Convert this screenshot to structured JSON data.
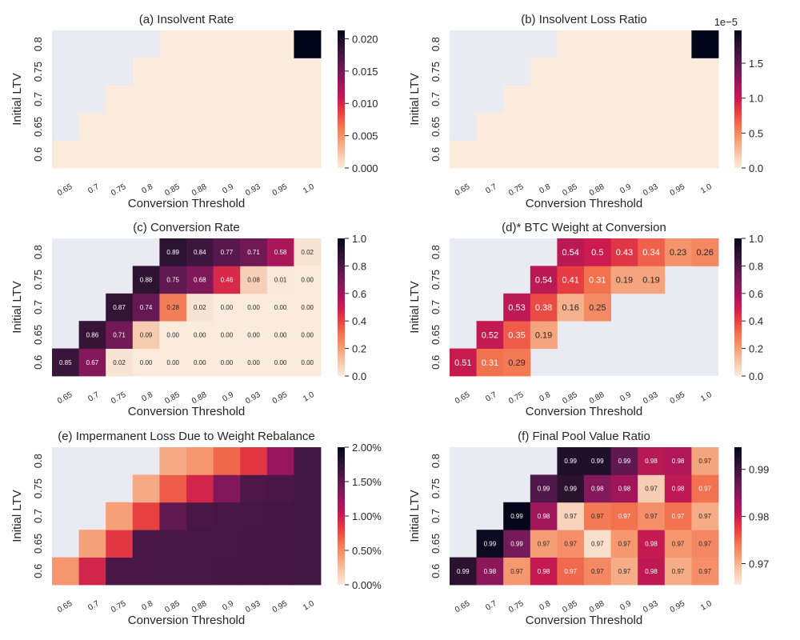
{
  "chart_data": [
    {
      "id": "a",
      "type": "heatmap",
      "title": "(a) Insolvent Rate",
      "xlabel": "Conversion Threshold",
      "ylabel": "Initial LTV",
      "x_categories": [
        "0.65",
        "0.7",
        "0.75",
        "0.8",
        "0.85",
        "0.88",
        "0.9",
        "0.93",
        "0.95",
        "1.0"
      ],
      "y_categories": [
        "0.6",
        "0.65",
        "0.7",
        "0.75",
        "0.8"
      ],
      "values": [
        [
          0,
          0,
          0,
          0,
          0,
          0,
          0,
          0,
          0,
          0
        ],
        [
          null,
          0,
          0,
          0,
          0,
          0,
          0,
          0,
          0,
          0
        ],
        [
          null,
          null,
          0,
          0,
          0,
          0,
          0,
          0,
          0,
          0
        ],
        [
          null,
          null,
          null,
          0,
          0,
          0,
          0,
          0,
          0,
          0
        ],
        [
          null,
          null,
          null,
          null,
          0,
          0,
          0,
          0,
          0,
          0.0213
        ]
      ],
      "annotated": false,
      "colormap": "rocket_r",
      "vmin": 0,
      "vmax": 0.0213,
      "colorbar_ticks": [
        0,
        0.005,
        0.01,
        0.015,
        0.02
      ],
      "colorbar_tick_labels": [
        "0.000",
        "0.005",
        "0.010",
        "0.015",
        "0.020"
      ],
      "colorbar_offset_label": ""
    },
    {
      "id": "b",
      "type": "heatmap",
      "title": "(b) Insolvent Loss Ratio",
      "xlabel": "Conversion Threshold",
      "ylabel": "Initial LTV",
      "x_categories": [
        "0.65",
        "0.7",
        "0.75",
        "0.8",
        "0.85",
        "0.88",
        "0.9",
        "0.93",
        "0.95",
        "1.0"
      ],
      "y_categories": [
        "0.6",
        "0.65",
        "0.7",
        "0.75",
        "0.8"
      ],
      "values": [
        [
          0,
          0,
          0,
          0,
          0,
          0,
          0,
          0,
          0,
          0
        ],
        [
          null,
          0,
          0,
          0,
          0,
          0,
          0,
          0,
          0,
          0
        ],
        [
          null,
          null,
          0,
          0,
          0,
          0,
          0,
          0,
          0,
          0
        ],
        [
          null,
          null,
          null,
          0,
          0,
          0,
          0,
          0,
          0,
          0
        ],
        [
          null,
          null,
          null,
          null,
          0,
          0,
          0,
          0,
          0,
          1.97e-05
        ]
      ],
      "annotated": false,
      "colormap": "rocket_r",
      "vmin": 0,
      "vmax": 1.97e-05,
      "colorbar_ticks": [
        0,
        5e-06,
        1e-05,
        1.5e-05
      ],
      "colorbar_tick_labels": [
        "0.0",
        "0.5",
        "1.0",
        "1.5"
      ],
      "colorbar_offset_label": "1e−5"
    },
    {
      "id": "c",
      "type": "heatmap",
      "title": "(c) Conversion Rate",
      "xlabel": "Conversion Threshold",
      "ylabel": "Initial LTV",
      "x_categories": [
        "0.65",
        "0.7",
        "0.75",
        "0.8",
        "0.85",
        "0.88",
        "0.9",
        "0.93",
        "0.95",
        "1.0"
      ],
      "y_categories": [
        "0.6",
        "0.65",
        "0.7",
        "0.75",
        "0.8"
      ],
      "values": [
        [
          0.85,
          0.67,
          0.02,
          0.0,
          0.0,
          0.0,
          0.0,
          0.0,
          0.0,
          0.0
        ],
        [
          null,
          0.86,
          0.71,
          0.09,
          0.0,
          0.0,
          0.0,
          0.0,
          0.0,
          0.0
        ],
        [
          null,
          null,
          0.87,
          0.74,
          0.28,
          0.02,
          0.0,
          0.0,
          0.0,
          0.0
        ],
        [
          null,
          null,
          null,
          0.88,
          0.75,
          0.68,
          0.46,
          0.08,
          0.01,
          0.0
        ],
        [
          null,
          null,
          null,
          null,
          0.89,
          0.84,
          0.77,
          0.71,
          0.58,
          0.02
        ]
      ],
      "annotated": true,
      "annot_format": "2f",
      "colormap": "rocket_r",
      "vmin": 0,
      "vmax": 1,
      "colorbar_ticks": [
        0,
        0.2,
        0.4,
        0.6,
        0.8,
        1.0
      ],
      "colorbar_tick_labels": [
        "0.0",
        "0.2",
        "0.4",
        "0.6",
        "0.8",
        "1.0"
      ],
      "colorbar_offset_label": ""
    },
    {
      "id": "d",
      "type": "heatmap",
      "title": "(d)* BTC Weight at Conversion",
      "xlabel": "Conversion Threshold",
      "ylabel": "Initial LTV",
      "x_categories": [
        "0.65",
        "0.7",
        "0.75",
        "0.8",
        "0.85",
        "0.88",
        "0.9",
        "0.93",
        "0.95",
        "1.0"
      ],
      "y_categories": [
        "0.6",
        "0.65",
        "0.7",
        "0.75",
        "0.8"
      ],
      "values": [
        [
          0.51,
          0.31,
          0.29,
          null,
          null,
          null,
          null,
          null,
          null,
          null
        ],
        [
          null,
          0.52,
          0.35,
          0.19,
          null,
          null,
          null,
          null,
          null,
          null
        ],
        [
          null,
          null,
          0.53,
          0.38,
          0.16,
          0.25,
          null,
          null,
          null,
          null
        ],
        [
          null,
          null,
          null,
          0.54,
          0.41,
          0.31,
          0.19,
          0.19,
          null,
          null
        ],
        [
          null,
          null,
          null,
          null,
          0.54,
          0.5,
          0.43,
          0.34,
          0.23,
          0.26
        ]
      ],
      "annotated": true,
      "annot_format": "g",
      "colormap": "rocket_r",
      "vmin": 0,
      "vmax": 1,
      "colorbar_ticks": [
        0,
        0.2,
        0.4,
        0.6,
        0.8,
        1.0
      ],
      "colorbar_tick_labels": [
        "0.0",
        "0.2",
        "0.4",
        "0.6",
        "0.8",
        "1.0"
      ],
      "colorbar_offset_label": ""
    },
    {
      "id": "e",
      "type": "heatmap",
      "title": "(e) Impermanent Loss Due to Weight Rebalance",
      "xlabel": "Conversion Threshold",
      "ylabel": "Initial LTV",
      "x_categories": [
        "0.65",
        "0.7",
        "0.75",
        "0.8",
        "0.85",
        "0.88",
        "0.9",
        "0.93",
        "0.95",
        "1.0"
      ],
      "y_categories": [
        "0.6",
        "0.65",
        "0.7",
        "0.75",
        "0.8"
      ],
      "values": [
        [
          0.0045,
          0.0095,
          0.0162,
          0.0162,
          0.0163,
          0.0163,
          0.0164,
          0.0164,
          0.0164,
          0.0165
        ],
        [
          null,
          0.004,
          0.0085,
          0.0162,
          0.0163,
          0.0163,
          0.0163,
          0.0164,
          0.0164,
          0.0165
        ],
        [
          null,
          null,
          0.004,
          0.008,
          0.015,
          0.0162,
          0.0163,
          0.0163,
          0.0164,
          0.0165
        ],
        [
          null,
          null,
          null,
          0.0035,
          0.007,
          0.0095,
          0.0135,
          0.016,
          0.0162,
          0.0165
        ],
        [
          null,
          null,
          null,
          null,
          0.0035,
          0.0045,
          0.0065,
          0.0085,
          0.0125,
          0.0165
        ]
      ],
      "annotated": false,
      "colormap": "rocket_r",
      "vmin": 0,
      "vmax": 0.02,
      "colorbar_ticks": [
        0,
        0.005,
        0.01,
        0.015,
        0.02
      ],
      "colorbar_tick_labels": [
        "0.00%",
        "0.50%",
        "1.00%",
        "1.50%",
        "2.00%"
      ],
      "colorbar_offset_label": ""
    },
    {
      "id": "f",
      "type": "heatmap",
      "title": "(f) Final Pool Value Ratio",
      "xlabel": "Conversion Threshold",
      "ylabel": "Initial LTV",
      "x_categories": [
        "0.65",
        "0.7",
        "0.75",
        "0.8",
        "0.85",
        "0.88",
        "0.9",
        "0.93",
        "0.95",
        "1.0"
      ],
      "y_categories": [
        "0.6",
        "0.65",
        "0.7",
        "0.75",
        "0.8"
      ],
      "values": [
        [
          0.9915,
          0.9845,
          0.972,
          0.9805,
          0.975,
          0.973,
          0.9705,
          0.981,
          0.9705,
          0.9725
        ],
        [
          null,
          0.994,
          0.986,
          0.9715,
          0.9725,
          0.9665,
          0.972,
          0.9805,
          0.972,
          0.973
        ],
        [
          null,
          null,
          0.9945,
          0.983,
          0.9675,
          0.974,
          0.9745,
          0.9725,
          0.9745,
          0.9705
        ],
        [
          null,
          null,
          null,
          0.9885,
          0.9915,
          0.985,
          0.983,
          0.968,
          0.981,
          0.9745
        ],
        [
          null,
          null,
          null,
          null,
          0.9925,
          0.9925,
          0.9875,
          0.9815,
          0.982,
          0.971
        ]
      ],
      "annotated": true,
      "annot_format": "2f",
      "colormap": "rocket_r",
      "vmin": 0.9655,
      "vmax": 0.9947,
      "colorbar_ticks": [
        0.97,
        0.98,
        0.99
      ],
      "colorbar_tick_labels": [
        "0.97",
        "0.98",
        "0.99"
      ],
      "colorbar_offset_label": ""
    }
  ]
}
